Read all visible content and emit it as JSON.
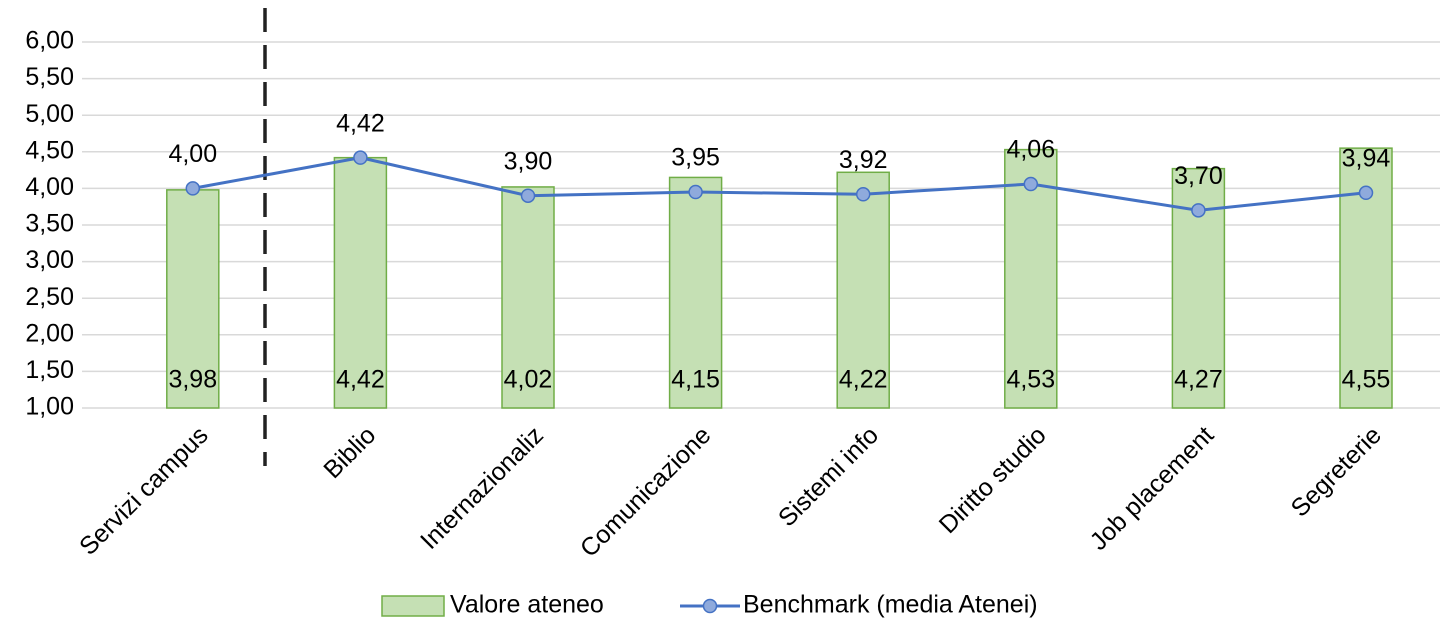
{
  "chart_data": {
    "type": "bar-line",
    "categories": [
      "Servizi campus",
      "Biblio",
      "Internazionaliz",
      "Comunicazione",
      "Sistemi info",
      "Diritto studio",
      "Job placement",
      "Segreterie"
    ],
    "series": [
      {
        "name": "Valore ateneo",
        "type": "bar",
        "color": "#c5e0b4",
        "stroke": "#70ad47",
        "values": [
          3.98,
          4.42,
          4.02,
          4.15,
          4.22,
          4.53,
          4.27,
          4.55
        ],
        "value_labels": [
          "3,98",
          "4,42",
          "4,02",
          "4,15",
          "4,22",
          "4,53",
          "4,27",
          "4,55"
        ]
      },
      {
        "name": "Benchmark (media Atenei)",
        "type": "line",
        "color": "#4472c4",
        "marker_color": "#8faadc",
        "values": [
          4.0,
          4.42,
          3.9,
          3.95,
          3.92,
          4.06,
          3.7,
          3.94
        ],
        "value_labels": [
          "4,00",
          "4,42",
          "3,90",
          "3,95",
          "3,92",
          "4,06",
          "3,70",
          "3,94"
        ]
      }
    ],
    "ylim": [
      1,
      6
    ],
    "yticks": [
      {
        "value": 1,
        "label": "1,00"
      },
      {
        "value": 1.5,
        "label": "1,50"
      },
      {
        "value": 2,
        "label": "2,00"
      },
      {
        "value": 2.5,
        "label": "2,50"
      },
      {
        "value": 3,
        "label": "3,00"
      },
      {
        "value": 3.5,
        "label": "3,50"
      },
      {
        "value": 4,
        "label": "4,00"
      },
      {
        "value": 4.5,
        "label": "4,50"
      },
      {
        "value": 5,
        "label": "5,00"
      },
      {
        "value": 5.5,
        "label": "5,50"
      },
      {
        "value": 6,
        "label": "6,00"
      }
    ],
    "grid": true,
    "legend": "bottom"
  }
}
